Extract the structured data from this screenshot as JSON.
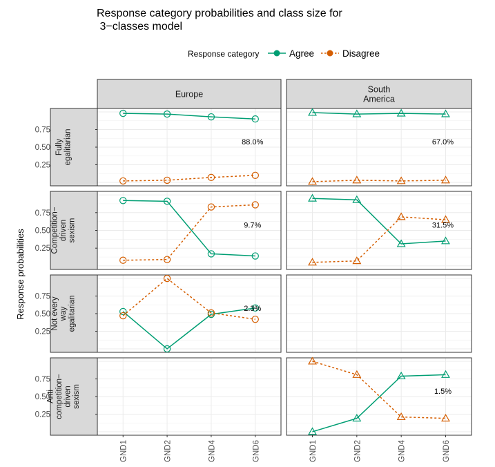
{
  "chart_data": {
    "type": "line",
    "title_lines": [
      "Response category probabilities and class size for",
      " 3−classes model"
    ],
    "ylabel": "Response probabilities",
    "legend": {
      "title": "Response category",
      "position": "top",
      "items": [
        {
          "name": "Agree",
          "color": "#009E73",
          "dash": "solid"
        },
        {
          "name": "Disagree",
          "color": "#D55E00",
          "dash": "dotted"
        }
      ]
    },
    "grid": true,
    "x": [
      "GND1",
      "GND2",
      "GND4",
      "GND6"
    ],
    "ylim": [
      0,
      1
    ],
    "y_ticks": [
      "0.25",
      "0.50",
      "0.75"
    ],
    "y_tick_values": [
      0.25,
      0.5,
      0.75
    ],
    "columns": [
      {
        "label_lines": [
          "Europe"
        ],
        "marker": "circle"
      },
      {
        "label_lines": [
          "South",
          "America"
        ],
        "marker": "triangle"
      }
    ],
    "rows": [
      {
        "label_lines": [
          "Fully",
          "egalitarian"
        ]
      },
      {
        "label_lines": [
          "Competition−",
          "driven",
          "sexism"
        ]
      },
      {
        "label_lines": [
          "Not every",
          "way",
          "egalitarian"
        ]
      },
      {
        "label_lines": [
          "Anti",
          "competition−",
          "driven",
          "sexism"
        ]
      }
    ],
    "panels": [
      {
        "row": 0,
        "col": 0,
        "class_size": "88.0%",
        "series": [
          {
            "name": "Agree",
            "values": [
              0.98,
              0.97,
              0.93,
              0.9
            ]
          },
          {
            "name": "Disagree",
            "values": [
              0.02,
              0.03,
              0.07,
              0.1
            ]
          }
        ]
      },
      {
        "row": 0,
        "col": 1,
        "class_size": "67.0%",
        "series": [
          {
            "name": "Agree",
            "values": [
              0.99,
              0.97,
              0.98,
              0.97
            ]
          },
          {
            "name": "Disagree",
            "values": [
              0.01,
              0.03,
              0.02,
              0.03
            ]
          }
        ]
      },
      {
        "row": 1,
        "col": 0,
        "class_size": "9.7%",
        "series": [
          {
            "name": "Agree",
            "values": [
              0.92,
              0.91,
              0.17,
              0.14
            ]
          },
          {
            "name": "Disagree",
            "values": [
              0.08,
              0.09,
              0.83,
              0.86
            ]
          }
        ]
      },
      {
        "row": 1,
        "col": 1,
        "class_size": "31.5%",
        "series": [
          {
            "name": "Agree",
            "values": [
              0.95,
              0.93,
              0.31,
              0.35
            ]
          },
          {
            "name": "Disagree",
            "values": [
              0.05,
              0.07,
              0.69,
              0.65
            ]
          }
        ]
      },
      {
        "row": 2,
        "col": 0,
        "class_size": "2.3%",
        "series": [
          {
            "name": "Agree",
            "values": [
              0.53,
              0.0,
              0.49,
              0.58
            ]
          },
          {
            "name": "Disagree",
            "values": [
              0.47,
              1.0,
              0.51,
              0.42
            ]
          }
        ]
      },
      {
        "row": 3,
        "col": 1,
        "class_size": "1.5%",
        "series": [
          {
            "name": "Agree",
            "values": [
              0.0,
              0.19,
              0.79,
              0.81
            ]
          },
          {
            "name": "Disagree",
            "values": [
              1.0,
              0.81,
              0.21,
              0.19
            ]
          }
        ]
      }
    ]
  }
}
